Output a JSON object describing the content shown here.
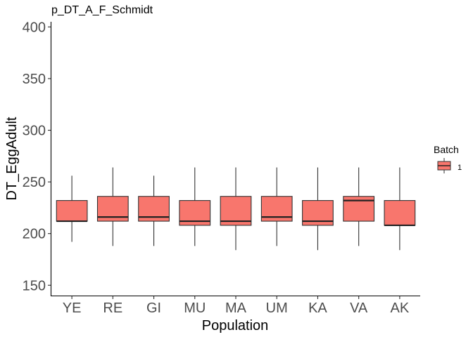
{
  "chart_data": {
    "type": "box",
    "title": "p_DT_A_F_Schmidt",
    "xlabel": "Population",
    "ylabel": "DT_EggAdult",
    "ylim": [
      140,
      405
    ],
    "yticks": [
      150,
      200,
      250,
      300,
      350,
      400
    ],
    "categories": [
      "YE",
      "RE",
      "GI",
      "MU",
      "MA",
      "UM",
      "KA",
      "VA",
      "AK"
    ],
    "boxes": [
      {
        "category": "YE",
        "min": 192,
        "q1": 212,
        "median": 212,
        "q3": 232,
        "max": 256
      },
      {
        "category": "RE",
        "min": 188,
        "q1": 212,
        "median": 216,
        "q3": 236,
        "max": 264
      },
      {
        "category": "GI",
        "min": 188,
        "q1": 212,
        "median": 216,
        "q3": 236,
        "max": 256
      },
      {
        "category": "MU",
        "min": 188,
        "q1": 208,
        "median": 212,
        "q3": 232,
        "max": 264
      },
      {
        "category": "MA",
        "min": 184,
        "q1": 208,
        "median": 212,
        "q3": 236,
        "max": 264
      },
      {
        "category": "UM",
        "min": 188,
        "q1": 212,
        "median": 216,
        "q3": 236,
        "max": 264
      },
      {
        "category": "KA",
        "min": 184,
        "q1": 208,
        "median": 212,
        "q3": 232,
        "max": 264
      },
      {
        "category": "VA",
        "min": 188,
        "q1": 212,
        "median": 232,
        "q3": 236,
        "max": 264
      },
      {
        "category": "AK",
        "min": 184,
        "q1": 208,
        "median": 208,
        "q3": 232,
        "max": 264
      }
    ],
    "fill_color": "#f8766d",
    "legend": {
      "title": "Batch",
      "entries": [
        "1"
      ],
      "position": "right"
    },
    "grid": false
  }
}
